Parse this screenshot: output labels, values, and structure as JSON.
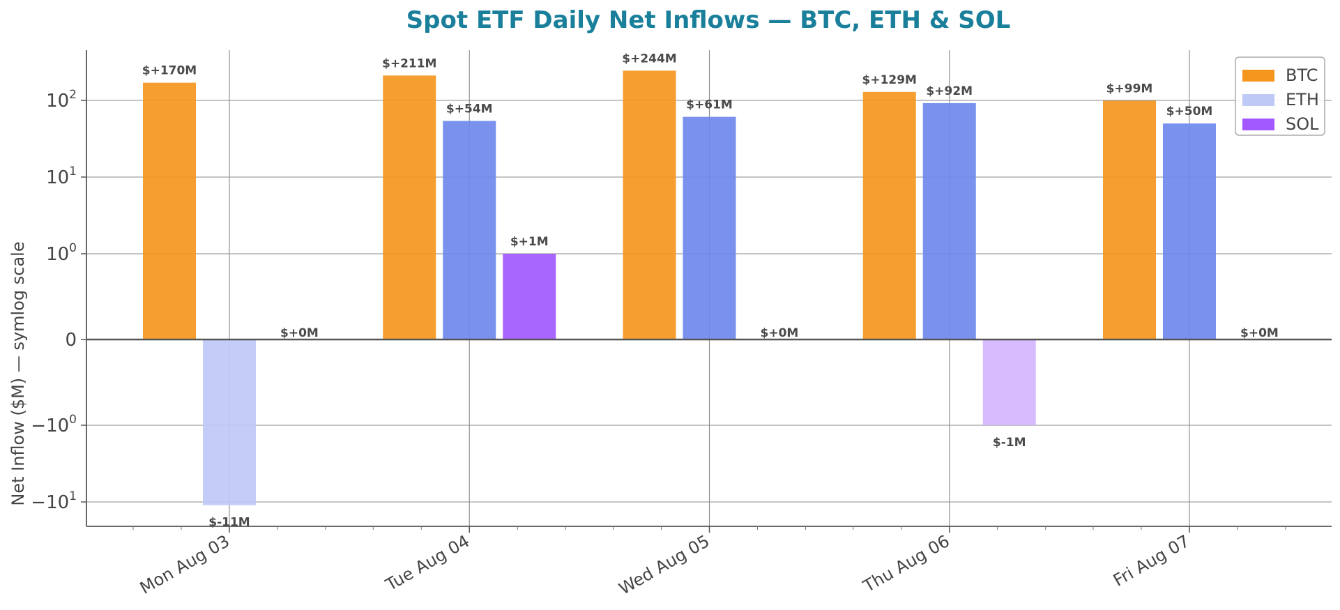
{
  "chart_data": {
    "type": "bar",
    "title": "Spot ETF Daily Net Inflows — BTC, ETH & SOL",
    "title_color": "#1a7f9a",
    "ylabel": "Net Inflow ($M) — symlog scale",
    "xlabel": "",
    "y_scale": "symlog",
    "ylim": [
      -30,
      450
    ],
    "yticks": [
      -10,
      -1,
      0,
      1,
      10,
      100
    ],
    "ytick_labels": [
      {
        "base": "−10",
        "exp": "1"
      },
      {
        "base": "−10",
        "exp": "0"
      },
      {
        "base": "0",
        "exp": ""
      },
      {
        "base": "10",
        "exp": "0"
      },
      {
        "base": "10",
        "exp": "1"
      },
      {
        "base": "10",
        "exp": "2"
      }
    ],
    "grid": true,
    "legend_position": "top-right",
    "categories": [
      "Mon Aug 03",
      "Tue Aug 04",
      "Wed Aug 05",
      "Thu Aug 06",
      "Fri Aug 07"
    ],
    "series": [
      {
        "name": "BTC",
        "color": "#f5961e",
        "negative_color": "#f5961e",
        "values": [
          170,
          211,
          244,
          129,
          99
        ],
        "labels": [
          "$+170M",
          "$+211M",
          "$+244M",
          "$+129M",
          "$+99M"
        ]
      },
      {
        "name": "ETH",
        "color": "#6f89ec",
        "negative_color": "#bfc9f6",
        "values": [
          -11,
          54,
          61,
          92,
          50
        ],
        "labels": [
          "$-11M",
          "$+54M",
          "$+61M",
          "$+92M",
          "$+50M"
        ]
      },
      {
        "name": "SOL",
        "color": "#a259ff",
        "negative_color": "#d5b5ff",
        "values": [
          0,
          1,
          0,
          -1,
          0
        ],
        "labels": [
          "$+0M",
          "$+1M",
          "$+0M",
          "$-1M",
          "$+0M"
        ]
      }
    ],
    "legend_colors": [
      "#f5961e",
      "#bfc9f6",
      "#a259ff"
    ]
  }
}
